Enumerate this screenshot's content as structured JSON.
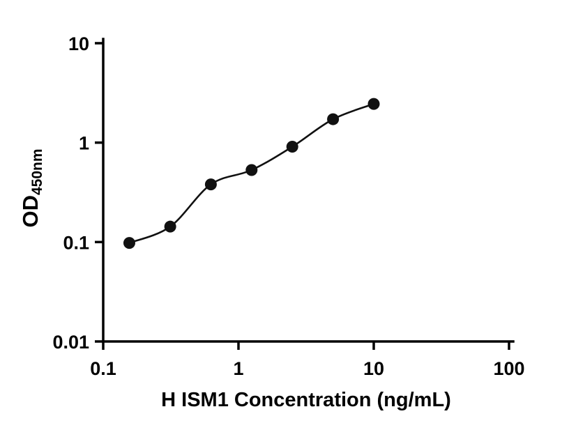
{
  "chart_data": {
    "type": "scatter",
    "title": "",
    "xlabel": "H ISM1 Concentration (ng/mL)",
    "ylabel_main": "OD",
    "ylabel_sub": "450nm",
    "x": [
      0.156,
      0.313,
      0.625,
      1.25,
      2.5,
      5,
      10
    ],
    "y": [
      0.098,
      0.143,
      0.38,
      0.53,
      0.91,
      1.72,
      2.45
    ],
    "x_scale": "log",
    "y_scale": "log",
    "xlim": [
      0.1,
      100
    ],
    "ylim": [
      0.01,
      10
    ],
    "x_ticks": [
      0.1,
      1,
      10,
      100
    ],
    "x_tick_labels": [
      "0.1",
      "1",
      "10",
      "100"
    ],
    "y_ticks": [
      0.01,
      0.1,
      1,
      10
    ],
    "y_tick_labels": [
      "0.01",
      "0.1",
      "1",
      "10"
    ],
    "grid": false,
    "legend": "none",
    "curve": "smooth-fit",
    "marker": "filled-circle",
    "marker_color": "#111111",
    "line_color": "#111111",
    "axis_color": "#000000"
  }
}
